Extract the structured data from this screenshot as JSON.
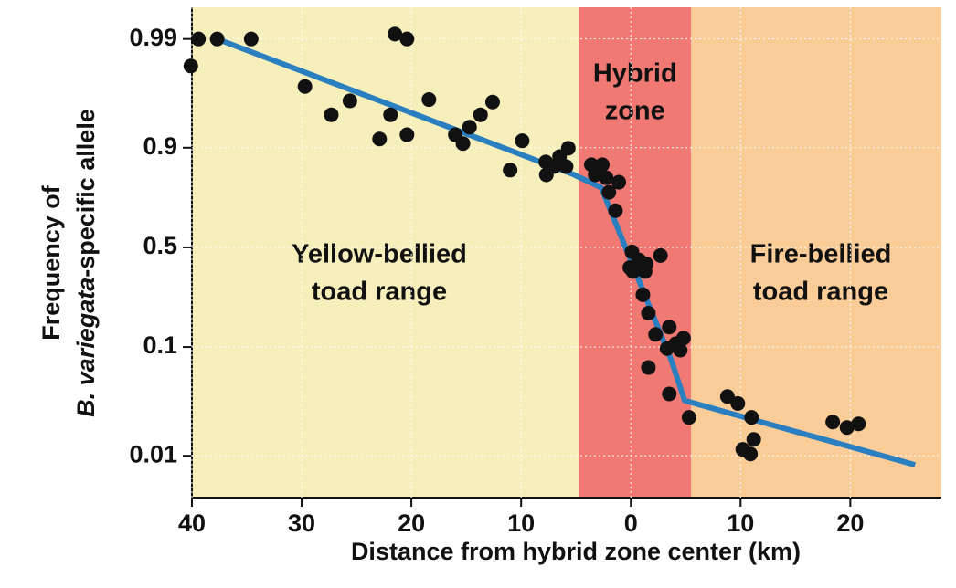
{
  "chart_data": {
    "type": "scatter",
    "yscale": "logit",
    "xlabel": "Distance from hybrid zone center (km)",
    "ylabel": [
      "Frequency of",
      "B. variegata",
      "-specific allele"
    ],
    "xlim": [
      -40,
      28.3
    ],
    "ylim": [
      0.004,
      0.995
    ],
    "xticks": [
      {
        "value": -40,
        "label": "40"
      },
      {
        "value": -30,
        "label": "30"
      },
      {
        "value": -20,
        "label": "20"
      },
      {
        "value": -10,
        "label": "10"
      },
      0,
      10,
      20
    ],
    "yticks": [
      0.01,
      0.1,
      0.5,
      0.9,
      0.99
    ],
    "regions": [
      {
        "x": [
          -40,
          -4.75
        ],
        "color": "#f6eebb",
        "label": [
          "Yellow-bellied",
          "toad range"
        ]
      },
      {
        "x": [
          -4.75,
          5.5
        ],
        "color": "#f07a73",
        "label": [
          "Hybrid",
          "zone"
        ]
      },
      {
        "x": [
          5.5,
          28.3
        ],
        "color": "#f9cc98",
        "label": [
          "Fire-bellied",
          "toad range"
        ]
      }
    ],
    "series": [
      {
        "name": "samples",
        "color": "#111111",
        "x": [
          -40.1,
          -39.4,
          -37.7,
          -34.6,
          -29.7,
          -27.3,
          -25.6,
          -22.9,
          -21.9,
          -21.5,
          -20.4,
          -20.4,
          -18.4,
          -16.0,
          -15.3,
          -14.7,
          -13.7,
          -12.6,
          -11.0,
          -9.9,
          -7.75,
          -7.7,
          -7.0,
          -6.5,
          -5.9,
          -5.7,
          -3.6,
          -2.6,
          -3.25,
          -2.25,
          -2.0,
          -1.1,
          -1.4,
          0.1,
          -0.1,
          0.2,
          0.75,
          1.3,
          1.4,
          1.1,
          1.6,
          2.7,
          2.25,
          3.3,
          3.5,
          4.1,
          4.5,
          4.8,
          1.6,
          3.5,
          5.3,
          8.8,
          9.75,
          11.0,
          10.2,
          10.9,
          11.2,
          18.4,
          19.7,
          20.75
        ],
        "values": [
          0.982,
          0.99,
          0.99,
          0.99,
          0.972,
          0.949,
          0.962,
          0.916,
          0.949,
          0.991,
          0.99,
          0.923,
          0.963,
          0.923,
          0.908,
          0.934,
          0.949,
          0.961,
          0.846,
          0.913,
          0.868,
          0.832,
          0.856,
          0.881,
          0.856,
          0.899,
          0.861,
          0.861,
          0.832,
          0.823,
          0.771,
          0.808,
          0.692,
          0.475,
          0.39,
          0.37,
          0.43,
          0.37,
          0.41,
          0.26,
          0.19,
          0.455,
          0.128,
          0.097,
          0.147,
          0.107,
          0.094,
          0.119,
          0.066,
          0.038,
          0.023,
          0.036,
          0.031,
          0.023,
          0.0115,
          0.0104,
          0.0143,
          0.0208,
          0.0185,
          0.02
        ]
      },
      {
        "name": "cline",
        "color": "#2a7fc1",
        "x": [
          -37.7,
          -5.3,
          -2.7,
          3.7,
          4.9,
          25.9
        ],
        "values": [
          0.99,
          0.834,
          0.789,
          0.076,
          0.033,
          0.0082
        ]
      }
    ]
  }
}
